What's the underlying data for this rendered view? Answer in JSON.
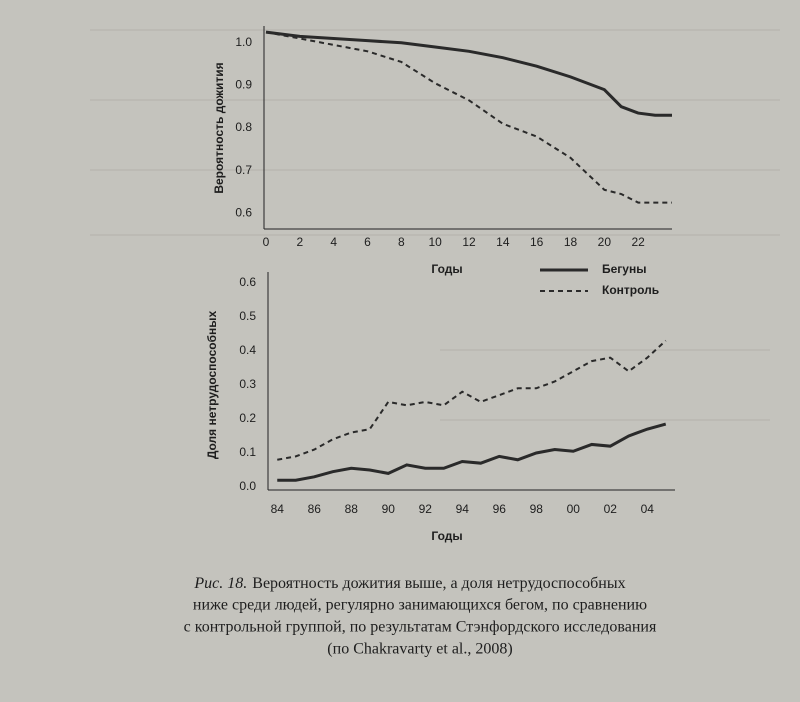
{
  "chart_data": [
    {
      "type": "line",
      "y_label": "Вероятность дожития",
      "x_label": "Годы",
      "x": [
        0,
        2,
        4,
        6,
        8,
        10,
        12,
        14,
        16,
        18,
        20,
        21,
        22,
        23,
        24
      ],
      "series": [
        {
          "name": "Бегуны",
          "color": "#2a2a2a",
          "line_style": "solid",
          "values": [
            1.025,
            1.015,
            1.01,
            1.005,
            1.0,
            0.99,
            0.98,
            0.965,
            0.945,
            0.92,
            0.89,
            0.85,
            0.835,
            0.83,
            0.83
          ]
        },
        {
          "name": "Контроль",
          "color": "#2a2a2a",
          "line_style": "dashed",
          "values": [
            1.025,
            1.01,
            0.995,
            0.98,
            0.955,
            0.905,
            0.865,
            0.81,
            0.78,
            0.73,
            0.655,
            0.645,
            0.625,
            0.625,
            0.625
          ]
        }
      ],
      "xlim": [
        0,
        24
      ],
      "xticks": [
        0,
        2,
        4,
        6,
        8,
        10,
        12,
        14,
        16,
        18,
        20,
        22
      ],
      "ylim": [
        0.57,
        1.03
      ],
      "yticks": [
        {
          "value": 1,
          "label": "1.0"
        },
        0.9,
        0.8,
        0.7,
        0.6
      ],
      "grid": false,
      "legend": "bottom-right"
    },
    {
      "type": "line",
      "y_label": "Доля нетрудоспособных",
      "x_label": "Годы",
      "x": [
        1984,
        1985,
        1986,
        1987,
        1988,
        1989,
        1990,
        1991,
        1992,
        1993,
        1994,
        1995,
        1996,
        1997,
        1998,
        1999,
        2000,
        2001,
        2002,
        2003,
        2004,
        2005
      ],
      "series": [
        {
          "name": "Бегуны",
          "color": "#2a2a2a",
          "line_style": "solid",
          "values": [
            0.02,
            0.02,
            0.03,
            0.045,
            0.055,
            0.05,
            0.04,
            0.065,
            0.055,
            0.055,
            0.075,
            0.07,
            0.09,
            0.08,
            0.1,
            0.11,
            0.105,
            0.125,
            0.12,
            0.15,
            0.17,
            0.185
          ]
        },
        {
          "name": "Контроль",
          "color": "#2a2a2a",
          "line_style": "dashed",
          "values": [
            0.08,
            0.09,
            0.11,
            0.14,
            0.16,
            0.17,
            0.25,
            0.24,
            0.25,
            0.24,
            0.28,
            0.25,
            0.27,
            0.29,
            0.29,
            0.31,
            0.34,
            0.37,
            0.38,
            0.34,
            0.38,
            0.43
          ]
        }
      ],
      "xlim": [
        1983.5,
        2005.5
      ],
      "xticks": [
        {
          "value": 1984,
          "label": "84"
        },
        {
          "value": 1986,
          "label": "86"
        },
        {
          "value": 1988,
          "label": "88"
        },
        {
          "value": 1990,
          "label": "90"
        },
        {
          "value": 1992,
          "label": "92"
        },
        {
          "value": 1994,
          "label": "94"
        },
        {
          "value": 1996,
          "label": "96"
        },
        {
          "value": 1998,
          "label": "98"
        },
        {
          "value": 2000,
          "label": "00"
        },
        {
          "value": 2002,
          "label": "02"
        },
        {
          "value": 2004,
          "label": "04"
        }
      ],
      "ylim": [
        0,
        0.62
      ],
      "yticks": [
        {
          "value": 0,
          "label": "0.0"
        },
        0.1,
        0.2,
        0.3,
        0.4,
        0.5,
        0.6
      ],
      "grid": false
    }
  ],
  "caption": {
    "label": "Рис. 18.",
    "lines": [
      "Вероятность дожития выше, а доля нетрудоспособных",
      "ниже среди людей, регулярно занимающихся бегом, по сравнению",
      "с контрольной группой, по результатам Стэнфордского исследования",
      "(по Chakravarty et al., 2008)"
    ]
  }
}
